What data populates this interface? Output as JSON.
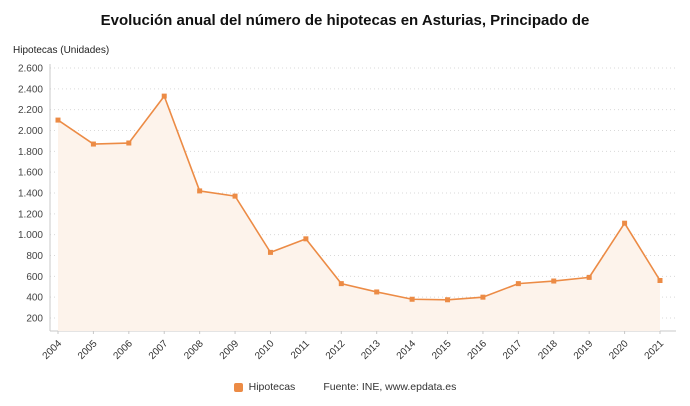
{
  "chart_data": {
    "type": "line",
    "title": "Evolución anual del número de hipotecas en Asturias, Principado de",
    "ylabel": "Hipotecas (Unidades)",
    "x": [
      "2004",
      "2005",
      "2006",
      "2007",
      "2008",
      "2009",
      "2010",
      "2011",
      "2012",
      "2013",
      "2014",
      "2015",
      "2016",
      "2017",
      "2018",
      "2019",
      "2020",
      "2021"
    ],
    "series": [
      {
        "name": "Hipotecas",
        "values": [
          2100,
          1870,
          1880,
          2330,
          1420,
          1370,
          830,
          960,
          530,
          450,
          380,
          375,
          400,
          530,
          555,
          590,
          1110,
          560
        ]
      }
    ],
    "ylim": [
      200,
      2600
    ],
    "yticks": [
      {
        "value": 200,
        "label": "200"
      },
      {
        "value": 400,
        "label": "400"
      },
      {
        "value": 600,
        "label": "600"
      },
      {
        "value": 800,
        "label": "800"
      },
      {
        "value": 1000,
        "label": "1.000"
      },
      {
        "value": 1200,
        "label": "1.200"
      },
      {
        "value": 1400,
        "label": "1.400"
      },
      {
        "value": 1600,
        "label": "1.600"
      },
      {
        "value": 1800,
        "label": "1.800"
      },
      {
        "value": 2000,
        "label": "2.000"
      },
      {
        "value": 2200,
        "label": "2.200"
      },
      {
        "value": 2400,
        "label": "2.400"
      },
      {
        "value": 2600,
        "label": "2.600"
      }
    ],
    "grid": true,
    "legend_position": "bottom",
    "legend": [
      {
        "label": "Hipotecas",
        "color": "#ec8b45"
      }
    ],
    "source": "Fuente: INE, www.epdata.es",
    "colors": {
      "line": "#ec8b45",
      "marker": "#ec8b45",
      "area_fill": "#fdf3eb",
      "grid": "#d9d9d9",
      "axis": "#c8c8c8",
      "tick_text": "#444444"
    }
  }
}
